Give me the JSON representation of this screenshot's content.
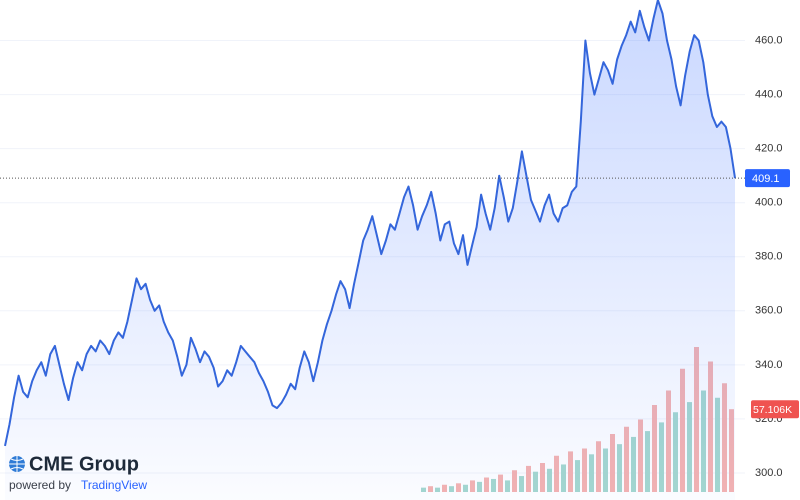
{
  "chart_data": {
    "type": "area",
    "color": "#3466db",
    "grid": true,
    "ylim": [
      290,
      475
    ],
    "yticks": [
      {
        "value": 300,
        "label": "300.0"
      },
      {
        "value": 320,
        "label": "320.0"
      },
      {
        "value": 340,
        "label": "340.0"
      },
      {
        "value": 360,
        "label": "360.0"
      },
      {
        "value": 380,
        "label": "380.0"
      },
      {
        "value": 400,
        "label": "400.0"
      },
      {
        "value": 420,
        "label": "420.0"
      },
      {
        "value": 440,
        "label": "440.0"
      },
      {
        "value": 460,
        "label": "460.0"
      }
    ],
    "values": [
      310,
      318,
      328,
      336,
      330,
      328,
      334,
      338,
      341,
      336,
      344,
      347,
      340,
      333,
      327,
      335,
      341,
      338,
      344,
      347,
      345,
      349,
      347,
      344,
      349,
      352,
      350,
      356,
      364,
      372,
      368,
      370,
      364,
      360,
      362,
      356,
      352,
      349,
      343,
      336,
      340,
      350,
      346,
      341,
      345,
      343,
      339,
      332,
      334,
      338,
      336,
      341,
      347,
      345,
      343,
      341,
      337,
      334,
      330,
      325,
      324,
      326,
      329,
      333,
      331,
      339,
      345,
      341,
      334,
      341,
      349,
      355,
      360,
      366,
      371,
      368,
      361,
      370,
      378,
      386,
      390,
      395,
      388,
      381,
      386,
      392,
      390,
      396,
      402,
      406,
      399,
      390,
      395,
      399,
      404,
      396,
      386,
      392,
      393,
      385,
      381,
      388,
      377,
      384,
      391,
      403,
      396,
      390,
      398,
      410,
      402,
      393,
      398,
      408,
      419,
      410,
      401,
      397,
      393,
      399,
      403,
      396,
      393,
      398,
      399,
      404,
      406,
      430,
      460,
      448,
      440,
      446,
      452,
      449,
      444,
      453,
      458,
      462,
      467,
      463,
      471,
      465,
      460,
      468,
      475,
      470,
      460,
      453,
      443,
      436,
      447,
      456,
      462,
      460,
      452,
      440,
      432,
      428,
      430,
      428,
      420,
      409.1
    ],
    "volume": {
      "values": [
        3,
        4,
        3,
        5,
        4,
        6,
        5,
        8,
        7,
        10,
        9,
        12,
        8,
        15,
        11,
        18,
        14,
        20,
        16,
        25,
        19,
        28,
        22,
        30,
        26,
        35,
        30,
        40,
        33,
        45,
        38,
        50,
        42,
        60,
        48,
        70,
        55,
        85,
        62,
        100,
        70,
        90,
        65,
        75,
        57.106
      ],
      "colors": [
        "#a5d8cf",
        "#f5b3b1",
        "#a5d8cf",
        "#f5b3b1",
        "#a5d8cf",
        "#f5b3b1",
        "#a5d8cf",
        "#f5b3b1",
        "#a5d8cf",
        "#f5b3b1",
        "#a5d8cf",
        "#f5b3b1",
        "#a5d8cf",
        "#f5b3b1",
        "#a5d8cf",
        "#f5b3b1",
        "#a5d8cf",
        "#f5b3b1",
        "#a5d8cf",
        "#f5b3b1",
        "#a5d8cf",
        "#f5b3b1",
        "#a5d8cf",
        "#f5b3b1",
        "#a5d8cf",
        "#f5b3b1",
        "#a5d8cf",
        "#f5b3b1",
        "#a5d8cf",
        "#f5b3b1",
        "#a5d8cf",
        "#f5b3b1",
        "#a5d8cf",
        "#f5b3b1",
        "#a5d8cf",
        "#f5b3b1",
        "#a5d8cf",
        "#f5b3b1",
        "#a5d8cf",
        "#f5b3b1",
        "#a5d8cf",
        "#f5b3b1",
        "#a5d8cf",
        "#f5b3b1",
        "#f5b3b1"
      ],
      "value_labels": [
        null,
        null,
        null,
        null,
        null,
        null,
        null,
        null,
        null,
        null,
        null,
        null,
        null,
        null,
        null,
        null,
        null,
        null,
        null,
        null,
        null,
        null,
        null,
        null,
        null,
        null,
        null,
        null,
        null,
        null,
        null,
        null,
        null,
        null,
        null,
        null,
        null,
        null,
        null,
        null,
        null,
        null,
        null,
        null,
        "57.106K"
      ]
    }
  },
  "branding": {
    "name": "CME Group",
    "powered_by": "powered by",
    "provider": "TradingView"
  }
}
